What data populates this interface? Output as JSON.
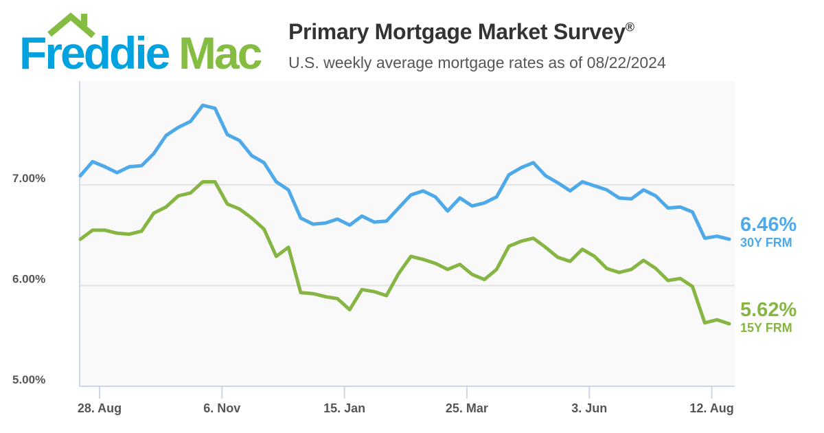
{
  "logo": {
    "text_blue": "Freddie",
    "text_green": "Mac",
    "blue": "#00a3e0",
    "green": "#84bd41"
  },
  "header": {
    "title": "Primary Mortgage Market Survey",
    "title_mark": "®",
    "subtitle": "U.S. weekly average mortgage rates as of 08/22/2024"
  },
  "chart_data": {
    "type": "line",
    "title": "Primary Mortgage Market Survey®",
    "subtitle": "U.S. weekly average mortgage rates as of 08/22/2024",
    "ylim": [
      5.0,
      8.03
    ],
    "yticks": [
      {
        "value": 5,
        "label": "5.00%"
      },
      {
        "value": 6,
        "label": "6.00%"
      },
      {
        "value": 7,
        "label": "7.00%"
      }
    ],
    "xticks": [
      {
        "date": "2023-08-28",
        "label": "28. Aug"
      },
      {
        "date": "2023-11-06",
        "label": "6. Nov"
      },
      {
        "date": "2024-01-15",
        "label": "15. Jan"
      },
      {
        "date": "2024-03-25",
        "label": "25. Mar"
      },
      {
        "date": "2024-06-03",
        "label": "3. Jun"
      },
      {
        "date": "2024-08-12",
        "label": "12. Aug"
      }
    ],
    "grid": true,
    "x_start": "2023-08-17",
    "x_end": "2024-08-22",
    "x_interval": "weekly",
    "series": [
      {
        "name": "30Y FRM",
        "color": "#4ea9e8",
        "last_label": "6.46%",
        "values": [
          7.09,
          7.23,
          7.18,
          7.12,
          7.18,
          7.19,
          7.31,
          7.49,
          7.57,
          7.63,
          7.79,
          7.76,
          7.5,
          7.44,
          7.29,
          7.22,
          7.03,
          6.95,
          6.67,
          6.61,
          6.62,
          6.66,
          6.6,
          6.69,
          6.63,
          6.64,
          6.77,
          6.9,
          6.94,
          6.88,
          6.74,
          6.87,
          6.79,
          6.82,
          6.88,
          7.1,
          7.17,
          7.22,
          7.09,
          7.02,
          6.94,
          7.03,
          6.99,
          6.95,
          6.87,
          6.86,
          6.95,
          6.89,
          6.77,
          6.78,
          6.73,
          6.47,
          6.49,
          6.46
        ]
      },
      {
        "name": "15Y FRM",
        "color": "#86b543",
        "last_label": "5.62%",
        "values": [
          6.46,
          6.55,
          6.55,
          6.52,
          6.51,
          6.54,
          6.72,
          6.78,
          6.89,
          6.92,
          7.03,
          7.03,
          6.81,
          6.76,
          6.67,
          6.56,
          6.29,
          6.38,
          5.93,
          5.92,
          5.89,
          5.87,
          5.76,
          5.96,
          5.94,
          5.9,
          6.12,
          6.29,
          6.26,
          6.22,
          6.16,
          6.21,
          6.11,
          6.06,
          6.16,
          6.39,
          6.44,
          6.47,
          6.38,
          6.28,
          6.24,
          6.36,
          6.29,
          6.17,
          6.13,
          6.16,
          6.25,
          6.17,
          6.05,
          6.07,
          5.99,
          5.63,
          5.66,
          5.62
        ]
      }
    ]
  }
}
